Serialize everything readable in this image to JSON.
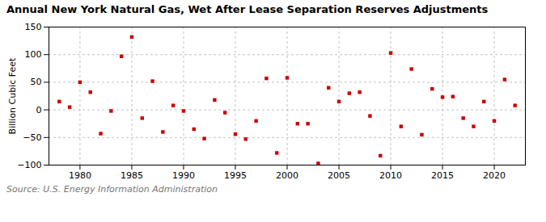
{
  "chart_data": {
    "type": "scatter",
    "title": "Annual New York Natural Gas, Wet After Lease Separation Reserves Adjustments",
    "ylabel": "Billion Cubic Feet",
    "annotations": [
      "Source: U.S. Energy Information Administration"
    ],
    "x": [
      1978,
      1979,
      1980,
      1981,
      1982,
      1983,
      1984,
      1985,
      1986,
      1987,
      1988,
      1989,
      1990,
      1991,
      1992,
      1993,
      1994,
      1995,
      1996,
      1997,
      1998,
      1999,
      2000,
      2001,
      2002,
      2003,
      2004,
      2005,
      2006,
      2007,
      2008,
      2009,
      2010,
      2011,
      2012,
      2013,
      2014,
      2015,
      2016,
      2017,
      2018,
      2019,
      2020,
      2021,
      2022
    ],
    "values": [
      15,
      5,
      50,
      32,
      -43,
      -2,
      97,
      132,
      -15,
      52,
      -40,
      8,
      -2,
      -35,
      -52,
      18,
      -5,
      -44,
      -53,
      -20,
      57,
      -78,
      58,
      -25,
      -25,
      -97,
      40,
      15,
      30,
      32,
      -11,
      -83,
      103,
      -30,
      74,
      -45,
      38,
      23,
      24,
      -15,
      -30,
      15,
      -20,
      55,
      8
    ],
    "color": "#cc0000",
    "marker": "square",
    "xlim": [
      1977,
      2023
    ],
    "xticks": [
      1980,
      1985,
      1990,
      1995,
      2000,
      2005,
      2010,
      2015,
      2020
    ],
    "ylim": [
      -100,
      150
    ],
    "yticks": [
      -100,
      -50,
      0,
      50,
      100,
      150
    ],
    "grid": true
  }
}
